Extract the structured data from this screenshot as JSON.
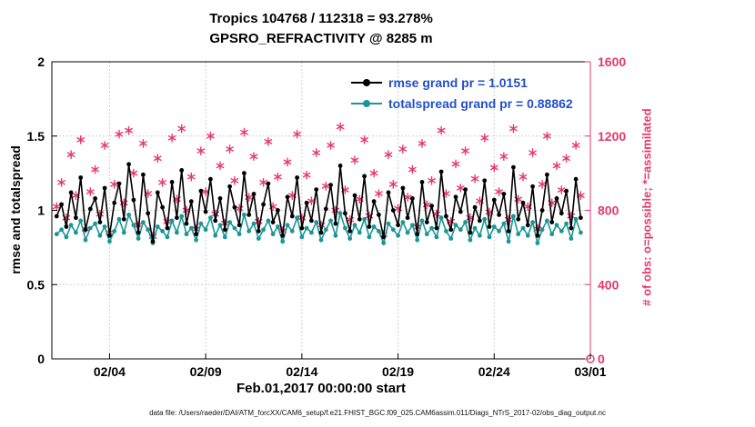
{
  "title": {
    "line1": "Tropics 104768 / 112318 = 93.278%",
    "line2": "GPSRO_REFRACTIVITY @ 8285 m"
  },
  "axes": {
    "left_label": "rmse and totalspread",
    "right_label": "# of obs: o=possible; *=assimilated",
    "x_label": "Feb.01,2017 00:00:00 start",
    "left_ticks": [
      0,
      0.5,
      1,
      1.5,
      2
    ],
    "left_tick_labels": [
      "0",
      "0.5",
      "1",
      "1.5",
      "2"
    ],
    "right_ticks": [
      0,
      400,
      800,
      1200,
      1600
    ],
    "right_tick_labels": [
      "0",
      "400",
      "800",
      "1200",
      "1600"
    ],
    "x_tick_days": [
      3,
      8,
      13,
      18,
      23,
      28
    ],
    "x_tick_labels": [
      "02/04",
      "02/09",
      "02/14",
      "02/19",
      "02/24",
      "03/01"
    ]
  },
  "legend": [
    {
      "label": "rmse grand pr = 1.0151",
      "series": "rmse"
    },
    {
      "label": "totalspread grand pr = 0.88862",
      "series": "totalspread"
    }
  ],
  "caption": "data file: /Users/raeder/DAI/ATM_forcXX/CAM6_setup/f.e21.FHIST_BGC.f09_025.CAM6assim.011/Diags_NTrS_2017-02/obs_diag_output.nc",
  "colors": {
    "rmse": "#000000",
    "spread": "#1a9696",
    "obs": "#e5386e",
    "legend_text": "#2350c8",
    "grid": "#cfcfcf",
    "axis": "#000000"
  },
  "chart_data": {
    "type": "line",
    "title": "Tropics 104768 / 112318 = 93.278% — GPSRO_REFRACTIVITY @ 8285 m",
    "x_axis": "days since Feb.01,2017 00:00:00",
    "xlim_days": [
      0,
      28
    ],
    "ylim_left": [
      0,
      2
    ],
    "ylim_right": [
      0,
      1600
    ],
    "grid": true,
    "legend_position": "inside-top-center-right",
    "t0": 0.25,
    "dt": 0.25,
    "series": [
      {
        "name": "rmse",
        "axis": "left",
        "marker": "dot",
        "color_key": "rmse",
        "grand_mean": 1.0151,
        "values": [
          0.96,
          1.04,
          0.89,
          1.12,
          0.95,
          1.22,
          0.87,
          1.01,
          1.08,
          0.92,
          1.15,
          0.83,
          1.05,
          1.18,
          0.94,
          1.31,
          1.07,
          0.85,
          1.24,
          0.98,
          0.79,
          1.12,
          1.02,
          0.88,
          1.19,
          0.95,
          1.27,
          0.91,
          1.06,
          0.84,
          1.13,
          0.99,
          1.21,
          0.93,
          1.08,
          0.87,
          1.16,
          1.02,
          0.9,
          1.25,
          0.97,
          1.11,
          0.86,
          1.04,
          1.18,
          0.92,
          1.0,
          0.83,
          1.09,
          0.96,
          1.22,
          0.88,
          1.05,
          0.93,
          1.14,
          0.85,
          1.01,
          1.17,
          0.91,
          1.3,
          0.98,
          0.86,
          1.1,
          0.94,
          1.23,
          0.89,
          1.06,
          0.97,
          0.82,
          1.12,
          1.0,
          0.9,
          1.15,
          0.95,
          1.08,
          0.84,
          1.19,
          0.92,
          1.03,
          0.88,
          1.26,
          0.96,
          0.87,
          1.09,
          0.99,
          1.14,
          0.85,
          1.02,
          0.93,
          1.2,
          0.89,
          1.07,
          0.97,
          1.11,
          0.86,
          1.29,
          0.94,
          1.05,
          0.9,
          1.16,
          0.83,
          1.0,
          1.24,
          0.92,
          1.08,
          0.98,
          1.13,
          0.88,
          1.21,
          0.95
        ]
      },
      {
        "name": "totalspread",
        "axis": "left",
        "marker": "dot",
        "color_key": "spread",
        "grand_mean": 0.88862,
        "values": [
          0.84,
          0.87,
          0.82,
          0.9,
          0.85,
          0.93,
          0.8,
          0.88,
          0.91,
          0.83,
          0.89,
          0.79,
          0.86,
          0.94,
          0.85,
          0.97,
          0.9,
          0.81,
          0.92,
          0.87,
          0.78,
          0.89,
          0.86,
          0.82,
          0.93,
          0.85,
          0.96,
          0.84,
          0.88,
          0.8,
          0.91,
          0.87,
          0.95,
          0.83,
          0.9,
          0.82,
          0.92,
          0.88,
          0.84,
          0.97,
          0.86,
          0.91,
          0.81,
          0.87,
          0.93,
          0.84,
          0.89,
          0.79,
          0.9,
          0.86,
          0.95,
          0.82,
          0.88,
          0.85,
          0.92,
          0.8,
          0.87,
          0.93,
          0.83,
          0.98,
          0.88,
          0.81,
          0.9,
          0.85,
          0.94,
          0.82,
          0.89,
          0.86,
          0.78,
          0.91,
          0.87,
          0.83,
          0.92,
          0.85,
          0.9,
          0.8,
          0.93,
          0.84,
          0.88,
          0.82,
          0.95,
          0.86,
          0.81,
          0.9,
          0.87,
          0.92,
          0.8,
          0.88,
          0.83,
          0.94,
          0.82,
          0.89,
          0.86,
          0.91,
          0.79,
          0.96,
          0.84,
          0.88,
          0.83,
          0.92,
          0.78,
          0.87,
          0.93,
          0.84,
          0.9,
          0.86,
          0.91,
          0.81,
          0.94,
          0.85
        ]
      },
      {
        "name": "assimilated",
        "axis": "right",
        "marker": "asterisk",
        "color_key": "obs",
        "values": [
          820,
          950,
          760,
          1100,
          880,
          1180,
          700,
          900,
          1020,
          780,
          1150,
          680,
          940,
          1210,
          840,
          1230,
          1000,
          720,
          1160,
          890,
          660,
          1080,
          950,
          740,
          1190,
          860,
          1240,
          800,
          980,
          700,
          1120,
          900,
          1200,
          780,
          1040,
          730,
          1130,
          960,
          810,
          1220,
          870,
          1090,
          740,
          950,
          1170,
          820,
          980,
          690,
          1060,
          880,
          1210,
          760,
          990,
          850,
          1110,
          720,
          930,
          1150,
          800,
          1250,
          910,
          750,
          1070,
          860,
          1180,
          770,
          1000,
          890,
          670,
          1100,
          940,
          810,
          1130,
          870,
          1020,
          710,
          1160,
          830,
          960,
          780,
          1230,
          890,
          740,
          1050,
          920,
          1120,
          760,
          970,
          850,
          1190,
          790,
          1030,
          900,
          1090,
          750,
          1240,
          860,
          980,
          820,
          1110,
          700,
          940,
          1200,
          840,
          1040,
          910,
          1080,
          770,
          1150,
          880
        ]
      }
    ],
    "extra_points": [
      {
        "series": "possible",
        "axis": "right",
        "marker": "circle",
        "color_key": "obs",
        "t": 28,
        "value": 0
      }
    ]
  }
}
